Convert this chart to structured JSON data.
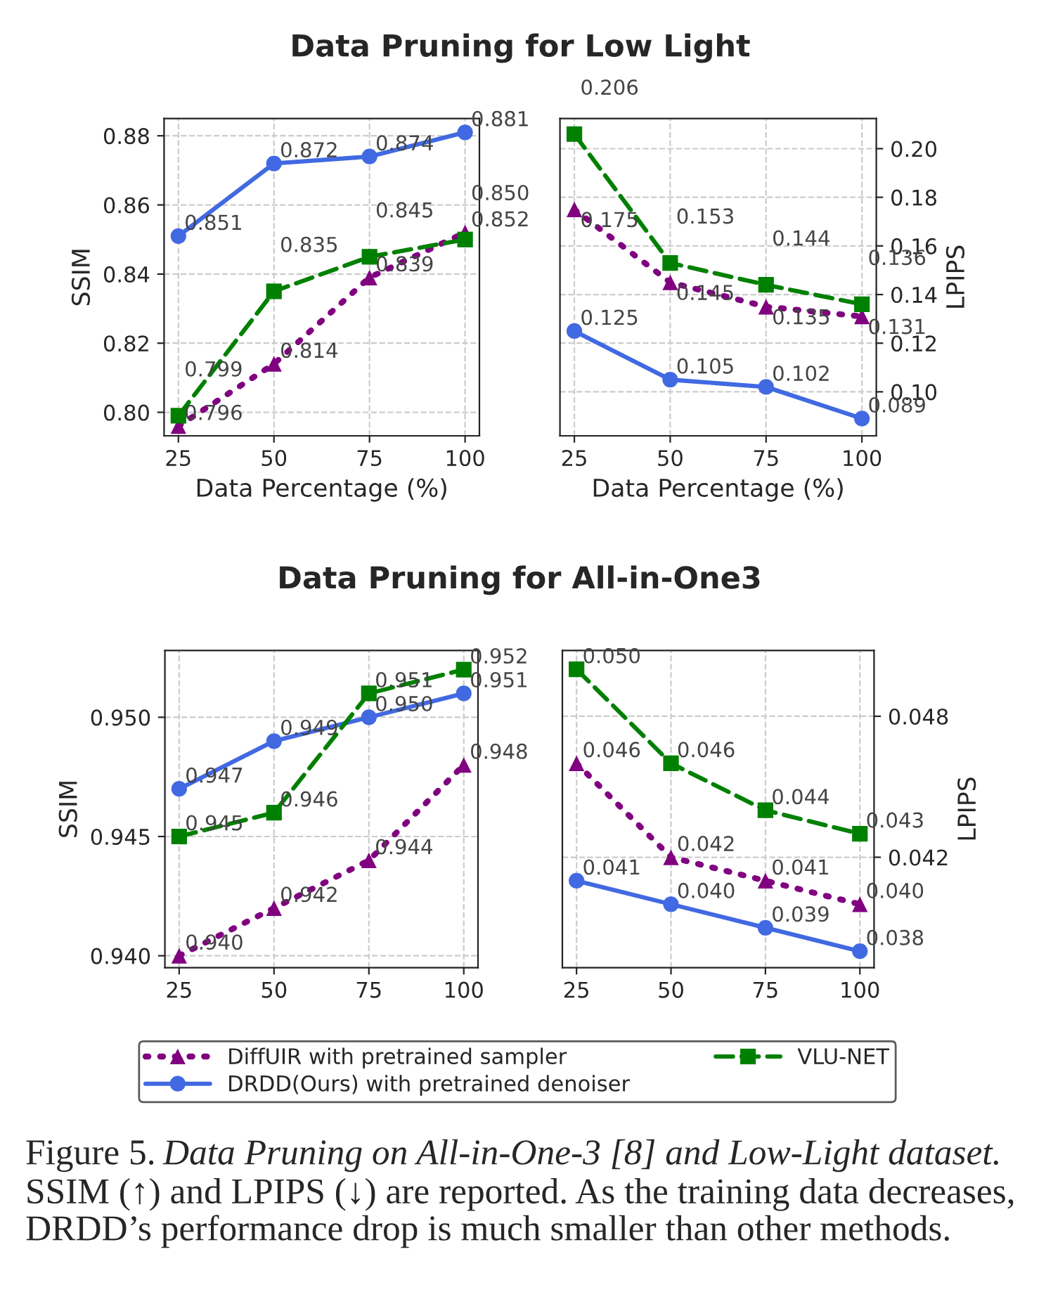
{
  "chart_data": [
    {
      "type": "line",
      "title": "Data Pruning for Low Light",
      "xlabel": "Data Percentage (%)",
      "ylabel": "SSIM",
      "x": [
        25,
        50,
        75,
        100
      ],
      "xlim": [
        21.25,
        103.75
      ],
      "xticks": [
        25,
        50,
        75,
        100
      ],
      "ylim": [
        0.7932,
        0.885
      ],
      "yticks": [
        {
          "value": 0.8,
          "label": "0.80"
        },
        0.82,
        0.84,
        0.86,
        0.88
      ],
      "grid": true,
      "legend": "bottom",
      "series": [
        {
          "name": "DiffUIR with pretrained sampler",
          "color": "#800080",
          "marker": "triangle",
          "line_style": "dotted",
          "values": [
            0.796,
            0.814,
            0.839,
            0.852
          ],
          "value_labels": [
            "0.796",
            "0.814",
            "0.839",
            "0.852"
          ]
        },
        {
          "name": "DRDD(Ours) with pretrained denoiser",
          "color": "#4169e1",
          "marker": "circle",
          "line_style": "solid",
          "values": [
            0.851,
            0.872,
            0.874,
            0.881
          ],
          "value_labels": [
            "0.851",
            "0.872",
            "0.874",
            "0.881"
          ]
        },
        {
          "name": "VLU-NET",
          "color": "#008000",
          "marker": "square",
          "line_style": "dashed",
          "values": [
            0.799,
            0.835,
            0.845,
            0.85
          ],
          "value_labels": [
            "0.799",
            "0.835",
            "0.845",
            "0.850"
          ]
        }
      ]
    },
    {
      "type": "line",
      "xlabel": "Data Percentage (%)",
      "y2label": "LPIPS",
      "x": [
        25,
        50,
        75,
        100
      ],
      "xlim": [
        21.25,
        103.75
      ],
      "xticks": [
        25,
        50,
        75,
        100
      ],
      "y2lim": [
        0.0819,
        0.2124
      ],
      "y2ticks": [
        {
          "value": 0.1,
          "label": "0.10"
        },
        0.12,
        0.14,
        0.16,
        0.18,
        {
          "value": 0.2,
          "label": "0.20"
        }
      ],
      "grid": true,
      "series": [
        {
          "color": "#800080",
          "marker": "triangle",
          "line_style": "dotted",
          "axis": "y2",
          "values": [
            0.175,
            0.145,
            0.135,
            0.131
          ],
          "value_labels": [
            "0.175",
            "0.145",
            "0.135",
            "0.131"
          ]
        },
        {
          "color": "#4169e1",
          "marker": "circle",
          "line_style": "solid",
          "axis": "y2",
          "values": [
            0.125,
            0.105,
            0.102,
            0.089
          ],
          "value_labels": [
            "0.125",
            "0.105",
            "0.102",
            "0.089"
          ]
        },
        {
          "color": "#008000",
          "marker": "square",
          "line_style": "dashed",
          "axis": "y2",
          "values": [
            0.206,
            0.153,
            0.144,
            0.136
          ],
          "value_labels": [
            "0.206",
            "0.153",
            "0.144",
            "0.136"
          ]
        }
      ]
    },
    {
      "type": "line",
      "title": "Data Pruning for All-in-One3",
      "ylabel": "SSIM",
      "x": [
        25,
        50,
        75,
        100
      ],
      "xlim": [
        21.25,
        103.75
      ],
      "xticks": [
        25,
        50,
        75,
        100
      ],
      "ylim": [
        0.9395,
        0.9528
      ],
      "yticks": [
        {
          "value": 0.94,
          "label": "0.940"
        },
        0.945,
        {
          "value": 0.95,
          "label": "0.950"
        }
      ],
      "grid": true,
      "series": [
        {
          "color": "#800080",
          "marker": "triangle",
          "line_style": "dotted",
          "values": [
            0.94,
            0.942,
            0.944,
            0.948
          ],
          "value_labels": [
            "0.940",
            "0.942",
            "0.944",
            "0.948"
          ]
        },
        {
          "color": "#4169e1",
          "marker": "circle",
          "line_style": "solid",
          "values": [
            0.947,
            0.949,
            0.95,
            0.951
          ],
          "value_labels": [
            "0.947",
            "0.949",
            "0.950",
            "0.951"
          ]
        },
        {
          "color": "#008000",
          "marker": "square",
          "line_style": "dashed",
          "values": [
            0.945,
            0.946,
            0.951,
            0.952
          ],
          "value_labels": [
            "0.945",
            "0.946",
            "0.951",
            "0.952"
          ]
        }
      ]
    },
    {
      "type": "line",
      "y2label": "LPIPS",
      "x": [
        25,
        50,
        75,
        100
      ],
      "xlim": [
        21.25,
        103.75
      ],
      "xticks": [
        25,
        50,
        75,
        100
      ],
      "y2lim": [
        0.0373,
        0.0508
      ],
      "y2ticks": [
        0.042,
        0.048
      ],
      "grid": true,
      "annotations": [
        "Figure 5.",
        "Data Pruning on All-in-One-3 [8] and Low-Light dataset.",
        "SSIM (↑) and LPIPS (↓) are reported. As the training data decreases, DRDD’s performance drop is much smaller than other methods."
      ],
      "series": [
        {
          "color": "#800080",
          "marker": "triangle",
          "line_style": "dotted",
          "axis": "y2",
          "values": [
            0.046,
            0.042,
            0.041,
            0.04
          ],
          "value_labels": [
            "0.046",
            "0.042",
            "0.041",
            "0.040"
          ]
        },
        {
          "color": "#4169e1",
          "marker": "circle",
          "line_style": "solid",
          "axis": "y2",
          "values": [
            0.041,
            0.04,
            0.039,
            0.038
          ],
          "value_labels": [
            "0.041",
            "0.040",
            "0.039",
            "0.038"
          ]
        },
        {
          "color": "#008000",
          "marker": "square",
          "line_style": "dashed",
          "axis": "y2",
          "values": [
            0.05,
            0.046,
            0.044,
            0.043
          ],
          "value_labels": [
            "0.050",
            "0.046",
            "0.044",
            "0.043"
          ]
        }
      ]
    }
  ]
}
